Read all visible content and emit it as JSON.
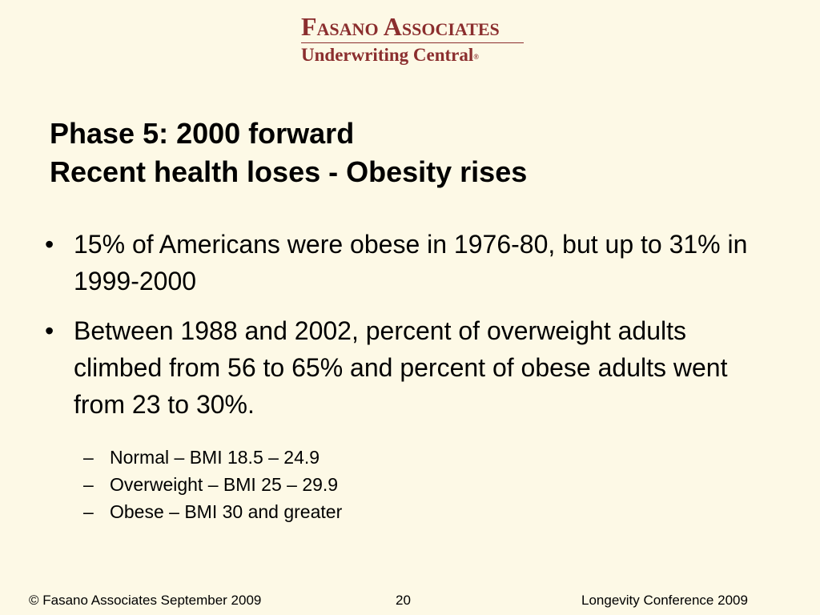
{
  "logo": {
    "line1": "Fasano Associates",
    "line2": "Underwriting Central",
    "mark": "®"
  },
  "title": {
    "line1": "Phase 5: 2000 forward",
    "line2": "Recent health loses - Obesity rises"
  },
  "bullets": [
    "15% of Americans were obese in 1976-80, but up to 31% in 1999-2000",
    "Between 1988 and 2002, percent of overweight adults climbed from 56 to 65% and percent of obese adults went from 23 to 30%."
  ],
  "bullet_symbol": "•",
  "sub_symbol": "–",
  "sub_bullets": [
    "Normal – BMI 18.5 – 24.9",
    "Overweight – BMI 25 – 29.9",
    "Obese – BMI 30 and greater"
  ],
  "footer": {
    "left": "© Fasano Associates  September 2009",
    "page": "20",
    "right": "Longevity Conference 2009"
  },
  "colors": {
    "background": "#FDF9E6",
    "brand": "#8B2E2E",
    "text": "#000000"
  }
}
